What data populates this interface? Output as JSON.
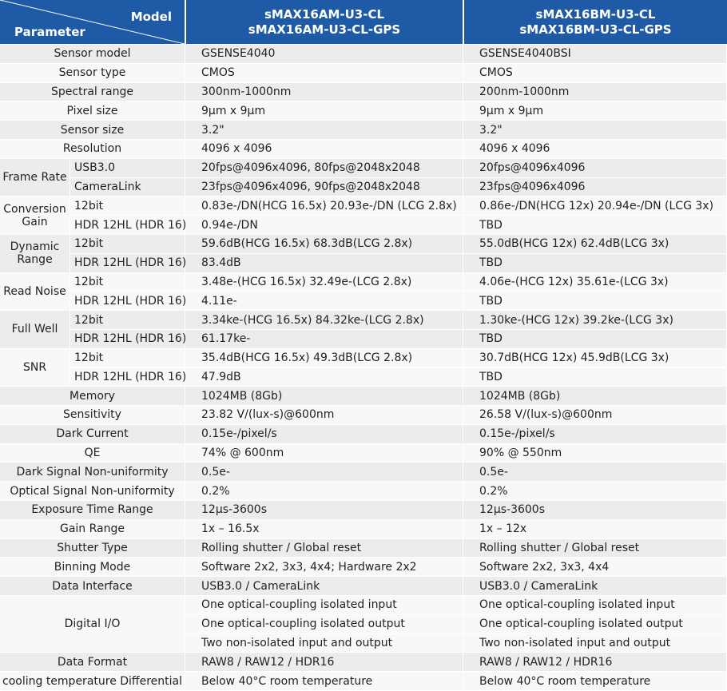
{
  "header": {
    "model_label": "Model",
    "parameter_label": "Parameter",
    "models": [
      [
        "sMAX16AM-U3-CL",
        "sMAX16AM-U3-CL-GPS"
      ],
      [
        "sMAX16BM-U3-CL",
        "sMAX16BM-U3-CL-GPS"
      ]
    ]
  },
  "rows": [
    {
      "label": "Sensor model",
      "lines": [
        [
          "GSENSE4040",
          "GSENSE4040BSI"
        ]
      ]
    },
    {
      "label": "Sensor type",
      "lines": [
        [
          "CMOS",
          "CMOS"
        ]
      ]
    },
    {
      "label": "Spectral range",
      "lines": [
        [
          "300nm-1000nm",
          "200nm-1000nm"
        ]
      ]
    },
    {
      "label": "Pixel size",
      "lines": [
        [
          "9μm x 9μm",
          "9μm x 9μm"
        ]
      ]
    },
    {
      "label": "Sensor size",
      "lines": [
        [
          "3.2\"",
          "3.2\""
        ]
      ]
    },
    {
      "label": "Resolution",
      "lines": [
        [
          "4096 x 4096",
          "4096 x 4096"
        ]
      ]
    },
    {
      "label": "Frame Rate",
      "sublabels": [
        "USB3.0",
        "CameraLink"
      ],
      "lines": [
        [
          "20fps@4096x4096, 80fps@2048x2048",
          "20fps@4096x4096"
        ],
        [
          "23fps@4096x4096, 90fps@2048x2048",
          "23fps@4096x4096"
        ]
      ]
    },
    {
      "label": "Conversion Gain",
      "sublabels": [
        "12bit",
        "HDR 12HL (HDR 16)"
      ],
      "lines": [
        [
          "0.83e-/DN(HCG 16.5x) 20.93e-/DN (LCG 2.8x)",
          "0.86e-/DN(HCG 12x) 20.94e-/DN (LCG 3x)"
        ],
        [
          "0.94e-/DN",
          "TBD"
        ]
      ]
    },
    {
      "label": "Dynamic Range",
      "sublabels": [
        "12bit",
        "HDR 12HL (HDR 16)"
      ],
      "lines": [
        [
          "59.6dB(HCG 16.5x) 68.3dB(LCG 2.8x)",
          "55.0dB(HCG 12x) 62.4dB(LCG 3x)"
        ],
        [
          "83.4dB",
          "TBD"
        ]
      ]
    },
    {
      "label": "Read Noise",
      "sublabels": [
        "12bit",
        "HDR 12HL (HDR 16)"
      ],
      "lines": [
        [
          "3.48e-(HCG 16.5x) 32.49e-(LCG 2.8x)",
          "4.06e-(HCG 12x) 35.61e-(LCG 3x)"
        ],
        [
          "4.11e-",
          "TBD"
        ]
      ]
    },
    {
      "label": "Full Well",
      "sublabels": [
        "12bit",
        "HDR 12HL (HDR 16)"
      ],
      "lines": [
        [
          "3.34ke-(HCG 16.5x) 84.32ke-(LCG 2.8x)",
          "1.30ke-(HCG 12x) 39.2ke-(LCG 3x)"
        ],
        [
          "61.17ke-",
          "TBD"
        ]
      ]
    },
    {
      "label": "SNR",
      "sublabels": [
        "12bit",
        "HDR 12HL (HDR 16)"
      ],
      "lines": [
        [
          "35.4dB(HCG 16.5x) 49.3dB(LCG 2.8x)",
          "30.7dB(HCG 12x) 45.9dB(LCG 3x)"
        ],
        [
          "47.9dB",
          "TBD"
        ]
      ]
    },
    {
      "label": "Memory",
      "lines": [
        [
          "1024MB (8Gb)",
          "1024MB (8Gb)"
        ]
      ]
    },
    {
      "label": "Sensitivity",
      "lines": [
        [
          "23.82 V/(lux-s)@600nm",
          "26.58 V/(lux-s)@600nm"
        ]
      ]
    },
    {
      "label": "Dark Current",
      "lines": [
        [
          "0.15e-/pixel/s",
          "0.15e-/pixel/s"
        ]
      ]
    },
    {
      "label": "QE",
      "lines": [
        [
          "74% @ 600nm",
          "90% @ 550nm"
        ]
      ]
    },
    {
      "label": "Dark Signal Non-uniformity",
      "lines": [
        [
          "0.5e-",
          "0.5e-"
        ]
      ]
    },
    {
      "label": "Optical Signal Non-uniformity",
      "lines": [
        [
          "0.2%",
          "0.2%"
        ]
      ]
    },
    {
      "label": "Exposure Time Range",
      "lines": [
        [
          "12μs-3600s",
          "12μs-3600s"
        ]
      ]
    },
    {
      "label": "Gain Range",
      "lines": [
        [
          "1x – 16.5x",
          "1x – 12x"
        ]
      ]
    },
    {
      "label": "Shutter Type",
      "lines": [
        [
          "Rolling shutter / Global reset",
          "Rolling shutter / Global reset"
        ]
      ]
    },
    {
      "label": "Binning Mode",
      "lines": [
        [
          "Software 2x2, 3x3, 4x4;  Hardware 2x2",
          "Software 2x2, 3x3, 4x4"
        ]
      ]
    },
    {
      "label": "Data Interface",
      "lines": [
        [
          "USB3.0 / CameraLink",
          "USB3.0 / CameraLink"
        ]
      ]
    },
    {
      "label": "Digital I/O",
      "lines": [
        [
          "One optical-coupling isolated input",
          "One optical-coupling isolated input"
        ],
        [
          "One optical-coupling isolated output",
          "One optical-coupling isolated output"
        ],
        [
          "Two non-isolated input and output",
          "Two non-isolated input and output"
        ]
      ]
    },
    {
      "label": "Data Format",
      "lines": [
        [
          "RAW8 / RAW12 / HDR16",
          "RAW8 / RAW12 / HDR16"
        ]
      ]
    },
    {
      "label": "cooling temperature Differential",
      "lines": [
        [
          "Below 40°C room temperature",
          "Below 40°C room temperature"
        ]
      ]
    }
  ]
}
